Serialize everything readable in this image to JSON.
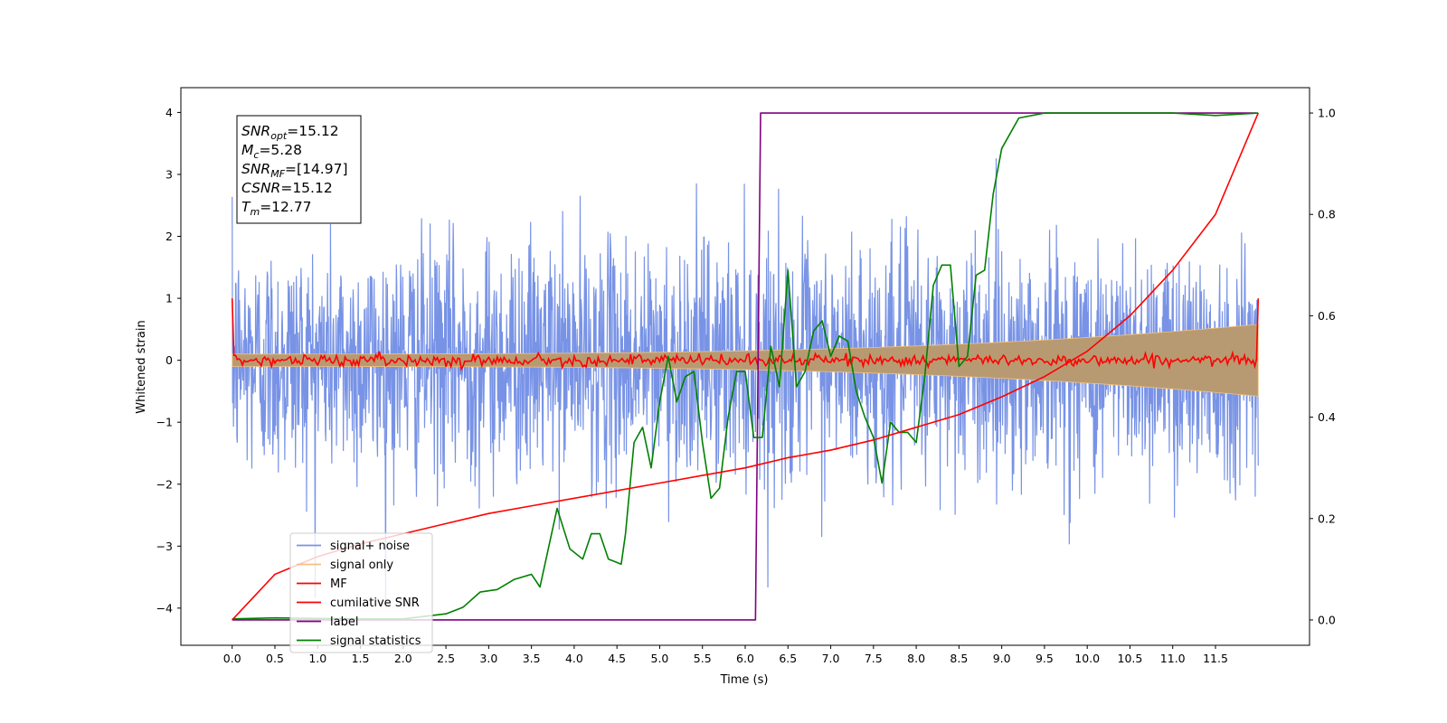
{
  "chart_data": {
    "type": "line",
    "xlabel": "Time (s)",
    "ylabel": "Whitened strain",
    "xlim": [
      -0.6,
      12.6
    ],
    "ylim": [
      -4.6,
      4.4
    ],
    "y2lim": [
      -0.05,
      1.05
    ],
    "xticks": [
      "0.0",
      "0.5",
      "1.0",
      "1.5",
      "2.0",
      "2.5",
      "3.0",
      "3.5",
      "4.0",
      "4.5",
      "5.0",
      "5.5",
      "6.0",
      "6.5",
      "7.0",
      "7.5",
      "8.0",
      "8.5",
      "9.0",
      "9.5",
      "10.0",
      "10.5",
      "11.0",
      "11.5"
    ],
    "xtick_values": [
      0,
      0.5,
      1,
      1.5,
      2,
      2.5,
      3,
      3.5,
      4,
      4.5,
      5,
      5.5,
      6,
      6.5,
      7,
      7.5,
      8,
      8.5,
      9,
      9.5,
      10,
      10.5,
      11,
      11.5
    ],
    "yticks": [
      "−4",
      "−3",
      "−2",
      "−1",
      "0",
      "1",
      "2",
      "3",
      "4"
    ],
    "ytick_values": [
      -4,
      -3,
      -2,
      -1,
      0,
      1,
      2,
      3,
      4
    ],
    "y2ticks": [
      "0.0",
      "0.2",
      "0.4",
      "0.6",
      "0.8",
      "1.0"
    ],
    "y2tick_values": [
      0,
      0.2,
      0.4,
      0.6,
      0.8,
      1.0
    ],
    "grid": false,
    "legend_position": "lower-left",
    "annotation": [
      {
        "var": "SNR",
        "sub": "opt",
        "value": "=15.12"
      },
      {
        "var": "M",
        "sub": "c",
        "value": "=5.28"
      },
      {
        "var": "SNR",
        "sub": "MF",
        "value": "=[14.97]"
      },
      {
        "var": "CSNR",
        "sub": "",
        "value": "=15.12"
      },
      {
        "var": "T",
        "sub": "m",
        "value": "=12.77"
      }
    ],
    "series": [
      {
        "name": "signal+ noise",
        "color": "#7893e6",
        "axis": "left",
        "description": "white noise, amplitude roughly ±2.3 with spikes to ±4",
        "x_range": [
          0,
          12.0
        ]
      },
      {
        "name": "signal only",
        "color": "#f5c07a",
        "axis": "left",
        "description": "chirp envelope growing from ±0.1 at t=0 to ±0.58 at t=12"
      },
      {
        "name": "MF",
        "color": "#ff0000",
        "axis": "left",
        "description": "matched filter output near 0 with small fluctuations, 1.0 at both ends"
      },
      {
        "name": "cumilative SNR",
        "color": "#ff0000",
        "axis": "right",
        "x": [
          0,
          0.5,
          1,
          1.5,
          2,
          2.5,
          3,
          3.5,
          4,
          4.5,
          5,
          5.5,
          6,
          6.5,
          7,
          7.5,
          8,
          8.5,
          9,
          9.5,
          10,
          10.5,
          11,
          11.5,
          12.0
        ],
        "values": [
          0,
          0.09,
          0.125,
          0.15,
          0.17,
          0.19,
          0.21,
          0.225,
          0.24,
          0.255,
          0.27,
          0.285,
          0.3,
          0.32,
          0.335,
          0.355,
          0.38,
          0.405,
          0.44,
          0.48,
          0.53,
          0.6,
          0.69,
          0.8,
          1.0
        ]
      },
      {
        "name": "label",
        "color": "#800080",
        "axis": "right",
        "x": [
          0,
          6.12,
          6.18,
          11.98
        ],
        "values": [
          0,
          0,
          1,
          1
        ]
      },
      {
        "name": "signal statistics",
        "color": "#008000",
        "axis": "right",
        "x": [
          0,
          0.5,
          1,
          1.5,
          2,
          2.5,
          2.7,
          2.9,
          3.1,
          3.3,
          3.5,
          3.6,
          3.8,
          3.95,
          4.1,
          4.2,
          4.3,
          4.4,
          4.55,
          4.6,
          4.7,
          4.8,
          4.9,
          5.0,
          5.1,
          5.2,
          5.3,
          5.4,
          5.5,
          5.6,
          5.7,
          5.8,
          5.9,
          6.0,
          6.1,
          6.2,
          6.3,
          6.4,
          6.5,
          6.6,
          6.7,
          6.8,
          6.9,
          7.0,
          7.1,
          7.2,
          7.3,
          7.4,
          7.5,
          7.6,
          7.7,
          7.8,
          7.9,
          8.0,
          8.1,
          8.2,
          8.3,
          8.4,
          8.5,
          8.6,
          8.7,
          8.8,
          8.9,
          9.0,
          9.2,
          9.5,
          10.0,
          11.0,
          11.5,
          12.0
        ],
        "values": [
          0.002,
          0.004,
          0.003,
          0.002,
          0.002,
          0.012,
          0.025,
          0.055,
          0.06,
          0.08,
          0.09,
          0.065,
          0.22,
          0.14,
          0.12,
          0.17,
          0.17,
          0.12,
          0.11,
          0.17,
          0.35,
          0.38,
          0.3,
          0.43,
          0.52,
          0.43,
          0.48,
          0.49,
          0.35,
          0.24,
          0.26,
          0.4,
          0.49,
          0.49,
          0.36,
          0.36,
          0.54,
          0.46,
          0.69,
          0.46,
          0.49,
          0.57,
          0.59,
          0.52,
          0.56,
          0.55,
          0.45,
          0.4,
          0.36,
          0.27,
          0.39,
          0.37,
          0.37,
          0.35,
          0.48,
          0.66,
          0.7,
          0.7,
          0.5,
          0.52,
          0.68,
          0.69,
          0.84,
          0.93,
          0.99,
          1.0,
          1.0,
          1.0,
          0.995,
          1.0
        ]
      }
    ]
  }
}
